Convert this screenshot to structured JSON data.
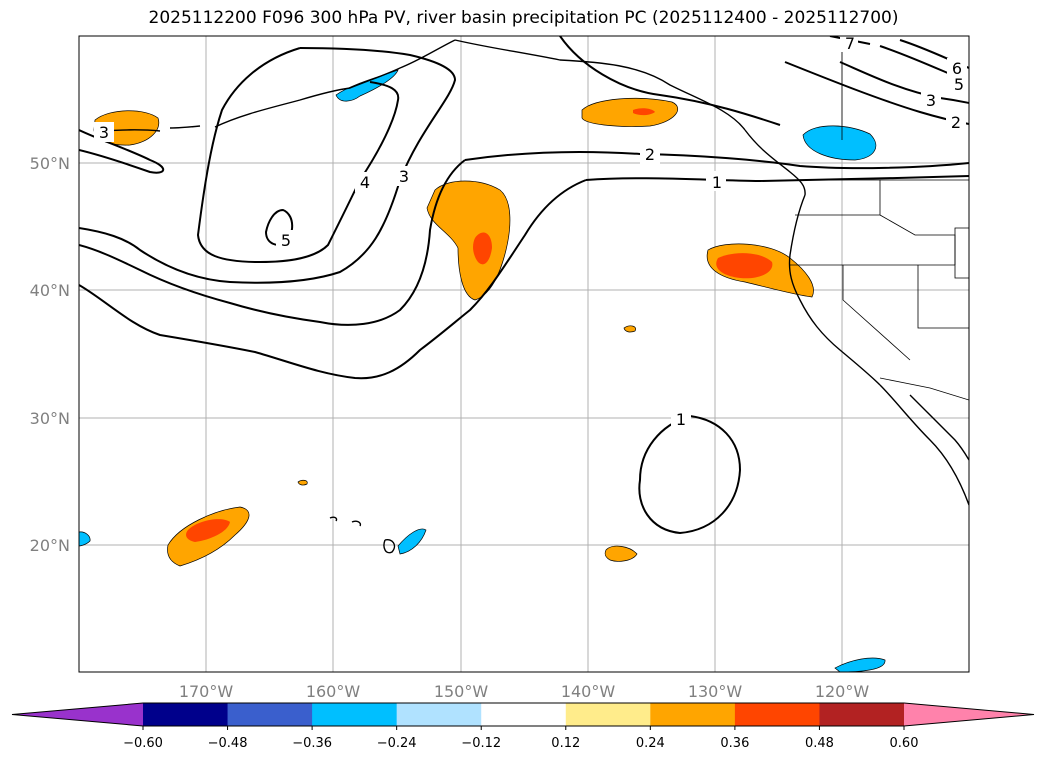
{
  "title": "2025112200 F096 300 hPa PV, river basin precipitation PC (2025112400 - 2025112700)",
  "latitude_labels": [
    "50°N",
    "40°N",
    "30°N",
    "20°N"
  ],
  "longitude_labels": [
    "170°W",
    "160°W",
    "150°W",
    "140°W",
    "130°W",
    "120°W"
  ],
  "colorbar": {
    "ticks": [
      "−0.60",
      "−0.48",
      "−0.36",
      "−0.24",
      "−0.12",
      "0.12",
      "0.24",
      "0.36",
      "0.48",
      "0.60"
    ],
    "colors": [
      "#9932CC",
      "#00008B",
      "#3A5FCD",
      "#00BFFF",
      "#B0E2FF",
      "#FFFFFF",
      "#FFEC8B",
      "#FFA500",
      "#FF4500",
      "#B22222",
      "#FF82AB"
    ]
  },
  "contour_labels": [
    "1",
    "1",
    "2",
    "2",
    "3",
    "3",
    "3",
    "4",
    "5",
    "5",
    "6",
    "7"
  ],
  "colors": {
    "positive_light": "#FFA500",
    "positive_strong": "#FF4500",
    "negative": "#00BFFF",
    "grid": "#b0b0b0",
    "contour": "#000000"
  }
}
